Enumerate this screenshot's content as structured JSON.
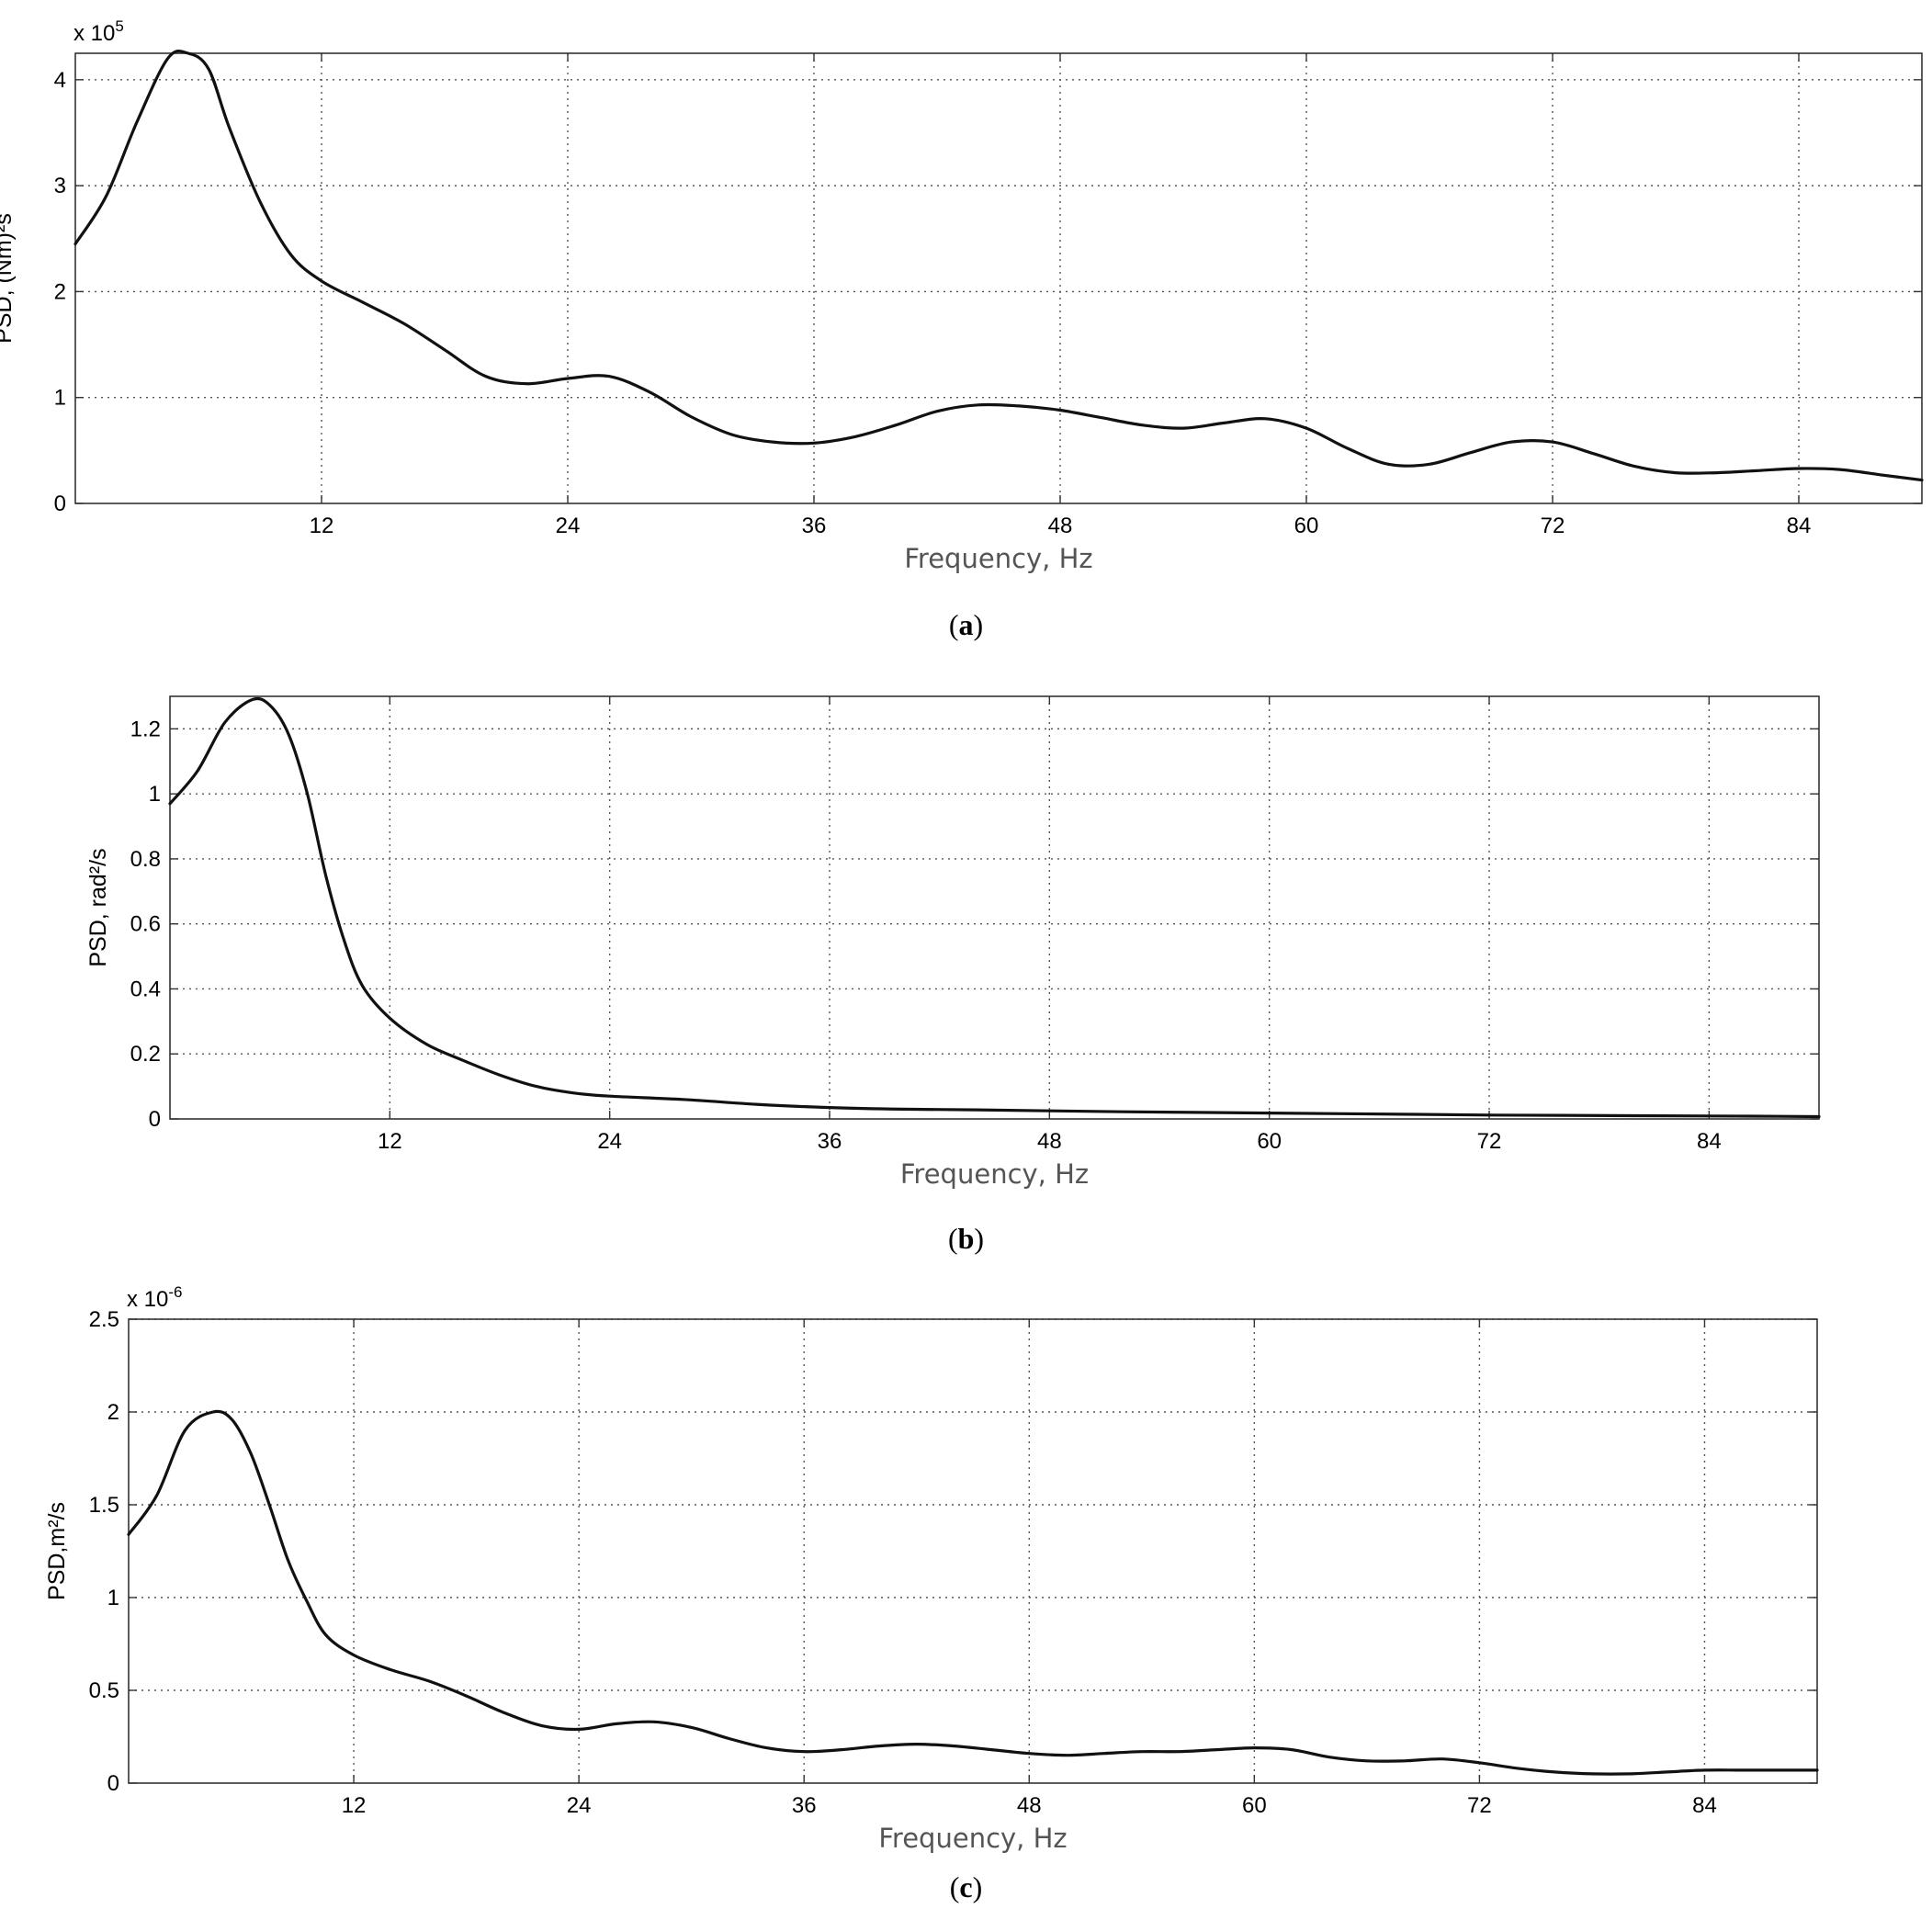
{
  "chart_data": [
    {
      "type": "line",
      "panel_label": "a",
      "xlabel": "Frequency, Hz",
      "ylabel": "PSD, (Nm)²s",
      "y_multiplier": "x 10",
      "y_multiplier_exponent": "5",
      "xlim": [
        0,
        90
      ],
      "ylim": [
        0,
        4.25
      ],
      "x_ticks": [
        12,
        24,
        36,
        48,
        60,
        72,
        84
      ],
      "y_ticks": [
        0,
        1,
        2,
        3,
        4
      ],
      "grid": true,
      "x": [
        0,
        1.5,
        3,
        4.5,
        5.5,
        6.5,
        7.5,
        9,
        10.5,
        12,
        14,
        16,
        18,
        20,
        22,
        24,
        26,
        28,
        30,
        32,
        34,
        36,
        38,
        40,
        42,
        44,
        46,
        48,
        50,
        52,
        54,
        56,
        58,
        60,
        62,
        64,
        66,
        68,
        70,
        72,
        74,
        76,
        78,
        80,
        82,
        84,
        86,
        88,
        90
      ],
      "y": [
        2.45,
        2.9,
        3.6,
        4.2,
        4.25,
        4.1,
        3.55,
        2.85,
        2.35,
        2.1,
        1.9,
        1.7,
        1.45,
        1.2,
        1.13,
        1.18,
        1.2,
        1.05,
        0.82,
        0.65,
        0.58,
        0.57,
        0.63,
        0.74,
        0.87,
        0.93,
        0.92,
        0.88,
        0.81,
        0.74,
        0.71,
        0.76,
        0.8,
        0.71,
        0.52,
        0.37,
        0.37,
        0.48,
        0.58,
        0.58,
        0.47,
        0.35,
        0.29,
        0.29,
        0.31,
        0.33,
        0.32,
        0.27,
        0.22
      ]
    },
    {
      "type": "line",
      "panel_label": "b",
      "xlabel": "Frequency, Hz",
      "ylabel": "PSD, rad²/s",
      "xlim": [
        0,
        90
      ],
      "ylim": [
        0,
        1.3
      ],
      "x_ticks": [
        12,
        24,
        36,
        48,
        60,
        72,
        84
      ],
      "y_ticks": [
        0,
        0.2,
        0.4,
        0.6,
        0.8,
        1,
        1.2
      ],
      "y_tick_labels": [
        "0",
        "0.2",
        "0.4",
        "0.6",
        "0.8",
        "1",
        "1.2"
      ],
      "grid": true,
      "x": [
        0,
        1.5,
        3,
        4.5,
        5.5,
        6.5,
        7.5,
        8.5,
        9.5,
        10.5,
        12,
        14,
        16,
        18,
        20,
        22,
        24,
        28,
        32,
        36,
        40,
        44,
        48,
        52,
        56,
        60,
        64,
        68,
        72,
        76,
        80,
        84,
        88,
        90
      ],
      "y": [
        0.97,
        1.07,
        1.22,
        1.29,
        1.27,
        1.18,
        1.0,
        0.75,
        0.55,
        0.41,
        0.31,
        0.23,
        0.18,
        0.135,
        0.1,
        0.08,
        0.07,
        0.06,
        0.045,
        0.035,
        0.03,
        0.028,
        0.025,
        0.022,
        0.02,
        0.018,
        0.016,
        0.014,
        0.012,
        0.011,
        0.01,
        0.009,
        0.008,
        0.007
      ]
    },
    {
      "type": "line",
      "panel_label": "c",
      "xlabel": "Frequency, Hz",
      "ylabel": "PSD,m²/s",
      "y_multiplier": "x 10",
      "y_multiplier_exponent": "-6",
      "xlim": [
        0,
        90
      ],
      "ylim": [
        0,
        2.5
      ],
      "x_ticks": [
        12,
        24,
        36,
        48,
        60,
        72,
        84
      ],
      "y_ticks": [
        0,
        0.5,
        1,
        1.5,
        2,
        2.5
      ],
      "y_tick_labels": [
        "0",
        "0.5",
        "1",
        "1.5",
        "2",
        "2.5"
      ],
      "grid": true,
      "x": [
        0,
        1.5,
        3,
        4.5,
        5.5,
        6.5,
        7.5,
        8.5,
        9.5,
        10.5,
        12,
        14,
        16,
        18,
        20,
        22,
        24,
        26,
        28,
        30,
        32,
        34,
        36,
        38,
        40,
        42,
        44,
        46,
        48,
        50,
        52,
        54,
        56,
        58,
        60,
        62,
        64,
        66,
        68,
        70,
        72,
        74,
        76,
        78,
        80,
        82,
        84,
        86,
        88,
        90
      ],
      "y": [
        1.34,
        1.55,
        1.9,
        2.0,
        1.96,
        1.78,
        1.5,
        1.2,
        0.98,
        0.8,
        0.69,
        0.61,
        0.55,
        0.47,
        0.38,
        0.31,
        0.29,
        0.32,
        0.33,
        0.3,
        0.24,
        0.19,
        0.17,
        0.18,
        0.2,
        0.21,
        0.2,
        0.18,
        0.16,
        0.15,
        0.16,
        0.17,
        0.17,
        0.18,
        0.19,
        0.18,
        0.14,
        0.12,
        0.12,
        0.13,
        0.11,
        0.08,
        0.06,
        0.05,
        0.05,
        0.06,
        0.07,
        0.07,
        0.07,
        0.07
      ]
    }
  ]
}
